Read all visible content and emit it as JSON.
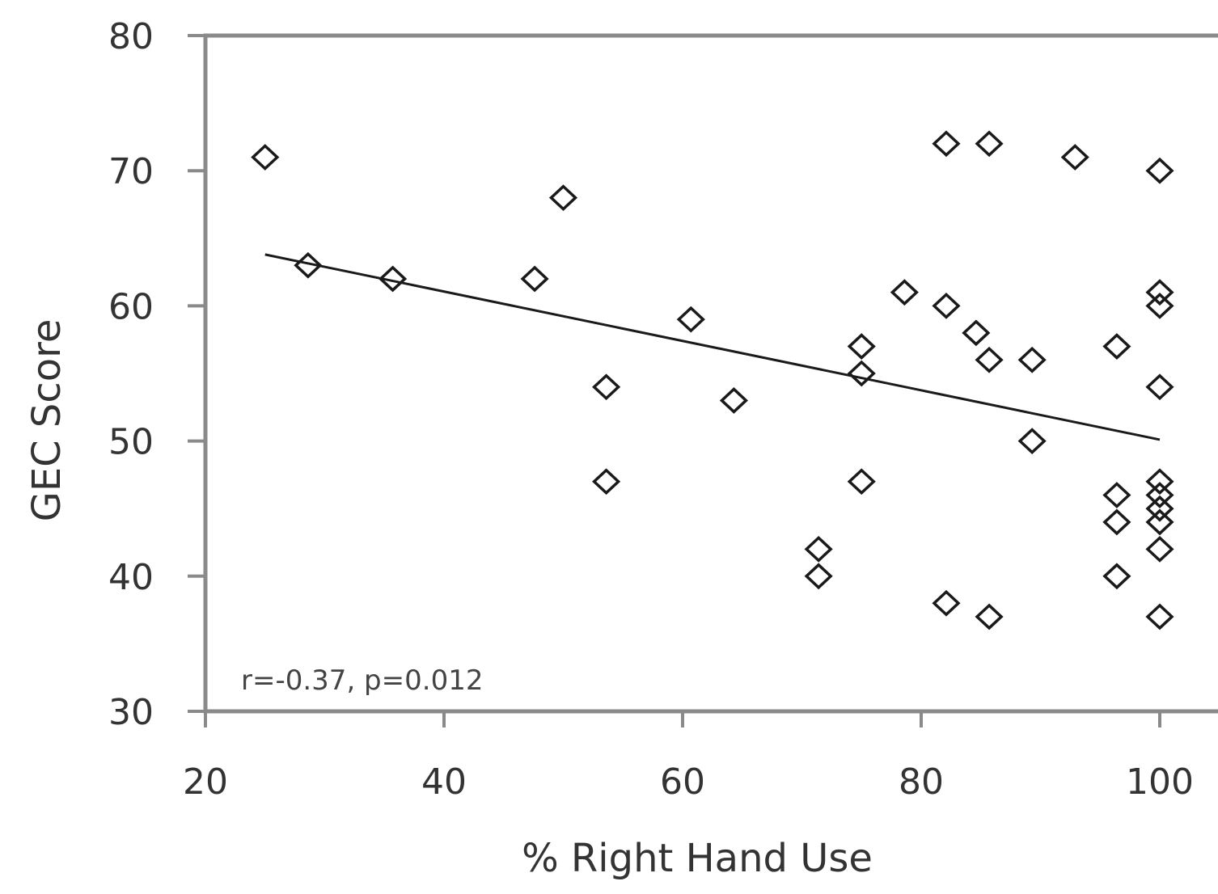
{
  "chart_data": {
    "type": "scatter",
    "title": "",
    "xlabel": "% Right Hand Use",
    "ylabel": "GEC Score",
    "xlim": [
      20,
      100
    ],
    "ylim": [
      30,
      80
    ],
    "x_ticks": [
      "20",
      "40",
      "60",
      "80",
      "100"
    ],
    "y_ticks": [
      "30",
      "40",
      "50",
      "60",
      "70",
      "80"
    ],
    "grid": false,
    "legend": "none",
    "annotation": "r=-0.37, p=0.012",
    "marker": "open-diamond",
    "series": [
      {
        "points": [
          [
            25,
            71
          ],
          [
            28.6,
            63
          ],
          [
            35.7,
            62
          ],
          [
            47.6,
            62
          ],
          [
            50,
            68
          ],
          [
            53.6,
            54
          ],
          [
            53.6,
            47
          ],
          [
            60.7,
            59
          ],
          [
            64.3,
            53
          ],
          [
            71.4,
            42
          ],
          [
            71.4,
            40
          ],
          [
            75,
            57
          ],
          [
            75,
            55
          ],
          [
            75,
            47
          ],
          [
            78.6,
            61
          ],
          [
            82.1,
            72
          ],
          [
            82.1,
            60
          ],
          [
            82.1,
            38
          ],
          [
            84.6,
            58
          ],
          [
            85.7,
            72
          ],
          [
            85.7,
            56
          ],
          [
            85.7,
            37
          ],
          [
            89.3,
            56
          ],
          [
            89.3,
            50
          ],
          [
            92.9,
            71
          ],
          [
            96.4,
            57
          ],
          [
            96.4,
            46
          ],
          [
            96.4,
            44
          ],
          [
            96.4,
            40
          ],
          [
            100,
            70
          ],
          [
            100,
            61
          ],
          [
            100,
            60
          ],
          [
            100,
            54
          ],
          [
            100,
            47
          ],
          [
            100,
            46
          ],
          [
            100,
            45
          ],
          [
            100,
            44
          ],
          [
            100,
            42
          ],
          [
            100,
            37
          ]
        ]
      }
    ],
    "trendline": {
      "x": [
        25,
        100
      ],
      "y": [
        63.8,
        50.1
      ]
    }
  }
}
